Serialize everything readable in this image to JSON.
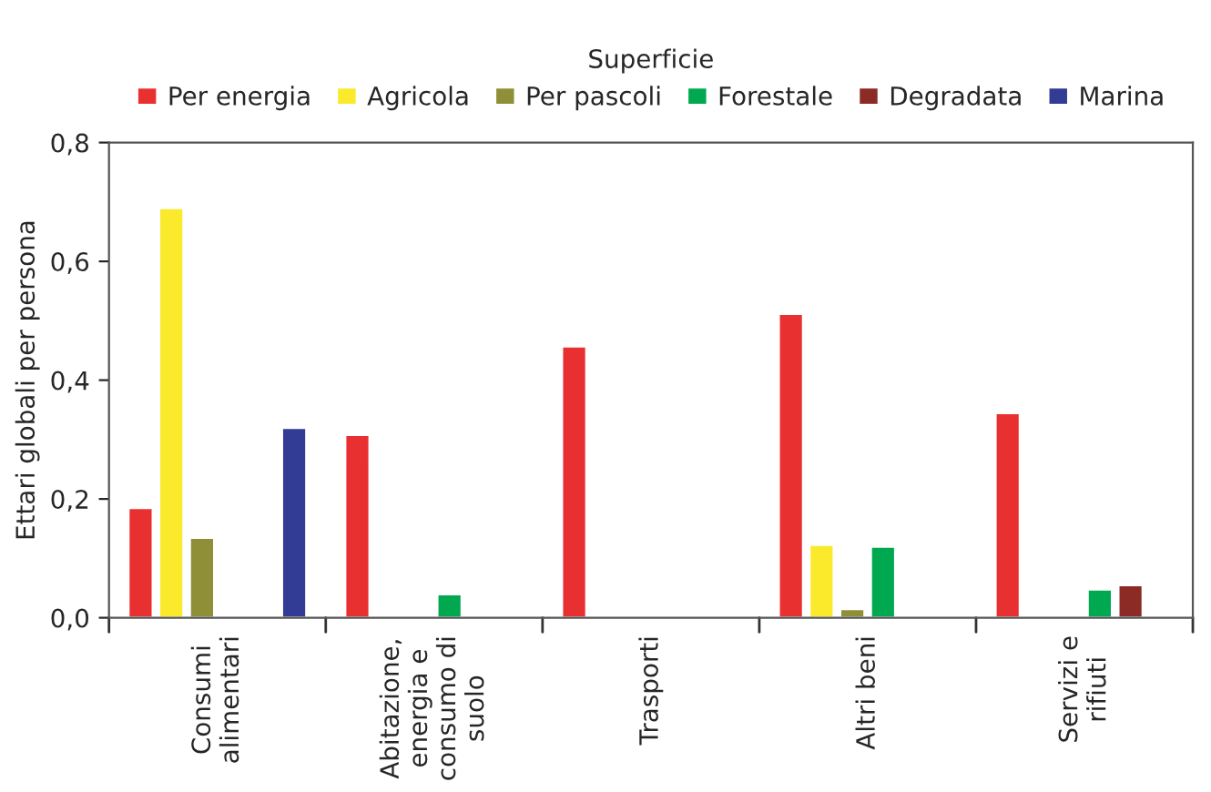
{
  "chart_data": {
    "type": "bar",
    "ylabel": "Ettari globali per persona",
    "legend_title": "Superficie",
    "legend": "top",
    "categories": [
      "Consumi\nalimentari",
      "Abitazione,\nenergia e\nconsumo di\nsuolo",
      "Trasporti",
      "Altri beni",
      "Servizi e\nrifiuti"
    ],
    "series": [
      {
        "name": "Per energia",
        "color": "#e93030",
        "values": [
          0.185,
          0.308,
          0.457,
          0.512,
          0.345
        ]
      },
      {
        "name": "Agricola",
        "color": "#fbe92c",
        "values": [
          0.69,
          null,
          null,
          0.123,
          null
        ]
      },
      {
        "name": "Per pascoli",
        "color": "#8f8f38",
        "values": [
          0.135,
          null,
          null,
          0.015,
          null
        ]
      },
      {
        "name": "Forestale",
        "color": "#00a94f",
        "values": [
          null,
          0.04,
          null,
          0.12,
          0.048
        ]
      },
      {
        "name": "Degradata",
        "color": "#8c2a26",
        "values": [
          null,
          0.002,
          0.002,
          0.003,
          0.055
        ]
      },
      {
        "name": "Marina",
        "color": "#333c95",
        "values": [
          0.32,
          null,
          null,
          null,
          null
        ]
      }
    ],
    "ylim": [
      0,
      0.8
    ],
    "yticks": [
      {
        "value": 0,
        "label": "0,0"
      },
      {
        "value": 0.2,
        "label": "0,2"
      },
      {
        "value": 0.4,
        "label": "0,4"
      },
      {
        "value": 0.6,
        "label": "0,6"
      },
      {
        "value": 0.8,
        "label": "0,8"
      }
    ],
    "grid": false
  }
}
